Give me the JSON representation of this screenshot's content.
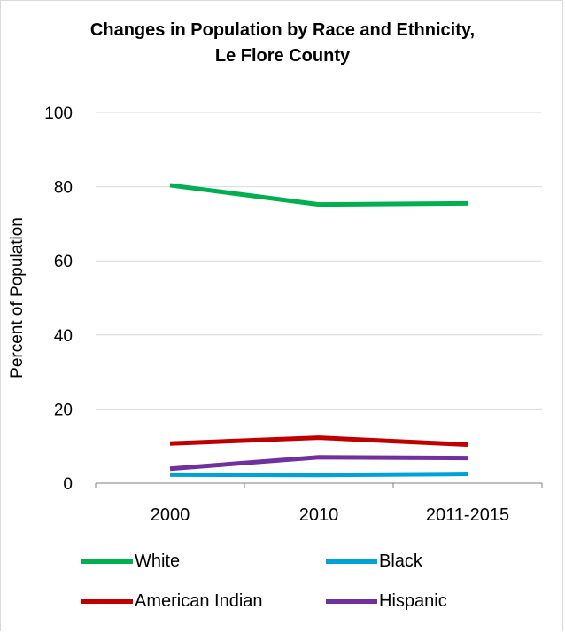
{
  "chart_data": {
    "type": "line",
    "title": "Changes in Population by Race and Ethnicity,",
    "title_line2": "Le Flore County",
    "ylabel": "Percent of Population",
    "xlabel": "",
    "categories": [
      "2000",
      "2010",
      "2011-2015"
    ],
    "ylim": [
      0,
      100
    ],
    "yticks": [
      0,
      20,
      40,
      60,
      80,
      100
    ],
    "grid": true,
    "legend_position": "bottom",
    "series": [
      {
        "name": "White",
        "color": "#00b050",
        "values": [
          80.4,
          75.2,
          75.5
        ]
      },
      {
        "name": "Black",
        "color": "#00a3d9",
        "values": [
          2.3,
          2.2,
          2.5
        ]
      },
      {
        "name": "American Indian",
        "color": "#c00000",
        "values": [
          10.7,
          12.3,
          10.4
        ]
      },
      {
        "name": "Hispanic",
        "color": "#7030a0",
        "values": [
          3.9,
          7.0,
          6.8
        ]
      }
    ]
  }
}
